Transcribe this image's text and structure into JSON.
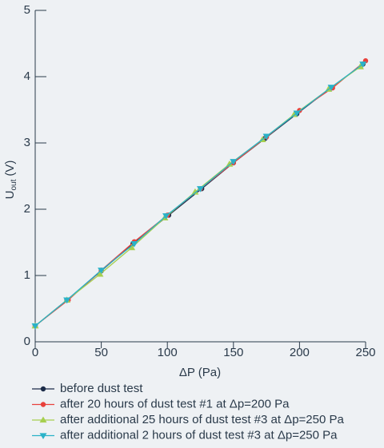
{
  "chart_data": {
    "type": "line",
    "xlabel": "ΔP (Pa)",
    "ylabel": "U",
    "ylabel_sub": "out",
    "ylabel_unit": "(V)",
    "xlim": [
      0,
      250
    ],
    "xticks": [
      0,
      50,
      100,
      150,
      200,
      250
    ],
    "ylim": [
      0,
      5
    ],
    "yticks": [
      0,
      1,
      2,
      3,
      4,
      5
    ],
    "series": [
      {
        "name": "before dust test",
        "color": "#1b2b48",
        "marker": "circle",
        "x": [
          0,
          24,
          50,
          74,
          101,
          126,
          150,
          174,
          198,
          223,
          248
        ],
        "values": [
          0.24,
          0.63,
          1.07,
          1.48,
          1.91,
          2.31,
          2.7,
          3.07,
          3.44,
          3.82,
          4.19
        ]
      },
      {
        "name": "after 20 hours of dust test #1 at Δp=200 Pa",
        "color": "#e8413c",
        "marker": "circle",
        "x": [
          0,
          25,
          50,
          75,
          100,
          125,
          150,
          175,
          200,
          225,
          250
        ],
        "values": [
          0.24,
          0.63,
          1.08,
          1.51,
          1.91,
          2.31,
          2.7,
          3.09,
          3.49,
          3.83,
          4.24
        ]
      },
      {
        "name": "after additional 25 hours of dust test #3 at Δp=250 Pa",
        "color": "#a6cf4f",
        "marker": "triangle-up",
        "x": [
          0,
          24,
          49,
          73,
          98,
          121,
          147,
          172,
          196,
          222,
          246
        ],
        "values": [
          0.24,
          0.63,
          1.02,
          1.42,
          1.87,
          2.26,
          2.68,
          3.05,
          3.43,
          3.81,
          4.15
        ]
      },
      {
        "name": "after additional 2 hours of dust test #3 at Δp=250 Pa",
        "color": "#2ab2c8",
        "marker": "triangle-down",
        "x": [
          0,
          24,
          50,
          75,
          99,
          125,
          150,
          175,
          198,
          224,
          248
        ],
        "values": [
          0.24,
          0.63,
          1.08,
          1.48,
          1.9,
          2.31,
          2.72,
          3.1,
          3.45,
          3.84,
          4.19
        ]
      }
    ]
  }
}
